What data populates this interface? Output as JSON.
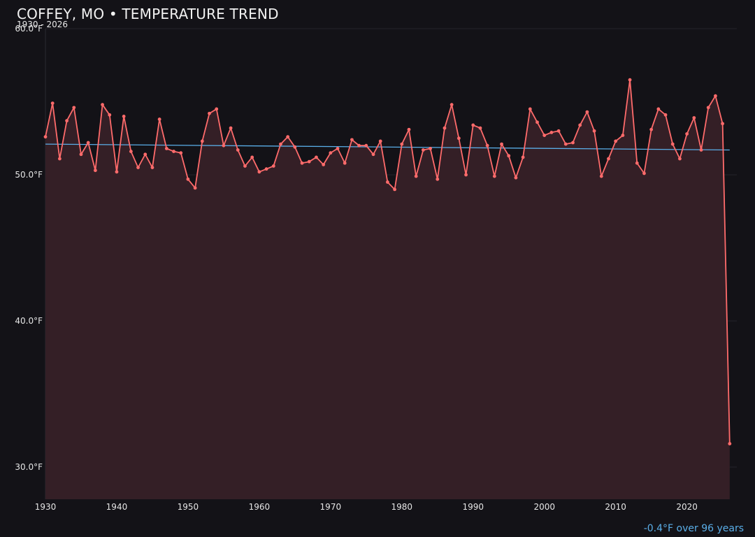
{
  "header": {
    "title": "COFFEY, MO • TEMPERATURE TREND",
    "subtitle": "1930 - 2026"
  },
  "footer": {
    "trend_note": "-0.4°F over 96 years"
  },
  "colors": {
    "background": "#131217",
    "line": "#ff6b6b",
    "area_fill": "#341f26",
    "trend": "#5aaee8",
    "grid": "#25242b"
  },
  "chart_data": {
    "type": "line",
    "title": "COFFEY, MO • TEMPERATURE TREND",
    "subtitle": "1930 - 2026",
    "xlabel": "",
    "ylabel": "",
    "xlim": [
      1930,
      2027
    ],
    "ylim": [
      27.8,
      60.0
    ],
    "yticks": [
      30,
      40,
      50,
      60
    ],
    "ytick_labels": [
      "30.0°F",
      "40.0°F",
      "50.0°F",
      "60.0°F"
    ],
    "xticks": [
      1930,
      1940,
      1950,
      1960,
      1970,
      1980,
      1990,
      2000,
      2010,
      2020
    ],
    "xtick_labels": [
      "1930",
      "1940",
      "1950",
      "1960",
      "1970",
      "1980",
      "1990",
      "2000",
      "2010",
      "2020"
    ],
    "grid": true,
    "legend": "none",
    "area_under_line": true,
    "x": [
      1930,
      1931,
      1932,
      1933,
      1934,
      1935,
      1936,
      1937,
      1938,
      1939,
      1940,
      1941,
      1942,
      1943,
      1944,
      1945,
      1946,
      1947,
      1948,
      1949,
      1950,
      1951,
      1952,
      1953,
      1954,
      1955,
      1956,
      1957,
      1958,
      1959,
      1960,
      1961,
      1962,
      1963,
      1964,
      1965,
      1966,
      1967,
      1968,
      1969,
      1970,
      1971,
      1972,
      1973,
      1974,
      1975,
      1976,
      1977,
      1978,
      1979,
      1980,
      1981,
      1982,
      1983,
      1984,
      1985,
      1986,
      1987,
      1988,
      1989,
      1990,
      1991,
      1992,
      1993,
      1994,
      1995,
      1996,
      1997,
      1998,
      1999,
      2000,
      2001,
      2002,
      2003,
      2004,
      2005,
      2006,
      2007,
      2008,
      2009,
      2010,
      2011,
      2012,
      2013,
      2014,
      2015,
      2016,
      2017,
      2018,
      2019,
      2020,
      2021,
      2022,
      2023,
      2024,
      2025,
      2026
    ],
    "series": [
      {
        "values": [
          52.6,
          54.9,
          51.1,
          53.7,
          54.6,
          51.4,
          52.2,
          50.3,
          54.8,
          54.1,
          50.2,
          54.0,
          51.6,
          50.5,
          51.4,
          50.5,
          53.8,
          51.8,
          51.6,
          51.5,
          49.7,
          49.1,
          52.3,
          54.2,
          54.5,
          52.0,
          53.2,
          51.7,
          50.6,
          51.2,
          50.2,
          50.4,
          50.6,
          52.1,
          52.6,
          51.9,
          50.8,
          50.9,
          51.2,
          50.7,
          51.5,
          51.8,
          50.8,
          52.4,
          52.0,
          52.0,
          51.4,
          52.3,
          49.5,
          49.0,
          52.1,
          53.1,
          49.9,
          51.7,
          51.8,
          49.7,
          53.2,
          54.8,
          52.5,
          50.0,
          53.4,
          53.2,
          52.0,
          49.9,
          52.1,
          51.3,
          49.8,
          51.2,
          54.5,
          53.6,
          52.7,
          52.9,
          53.0,
          52.1,
          52.2,
          53.4,
          54.3,
          53.0,
          49.9,
          51.1,
          52.3,
          52.7,
          56.5,
          50.8,
          50.1,
          53.1,
          54.5,
          54.1,
          52.1,
          51.1,
          52.8,
          53.9,
          51.7,
          54.6,
          55.4,
          53.5,
          31.6
        ]
      }
    ],
    "trend_line": {
      "x": [
        1930,
        2026
      ],
      "y": [
        52.1,
        51.7
      ]
    }
  }
}
